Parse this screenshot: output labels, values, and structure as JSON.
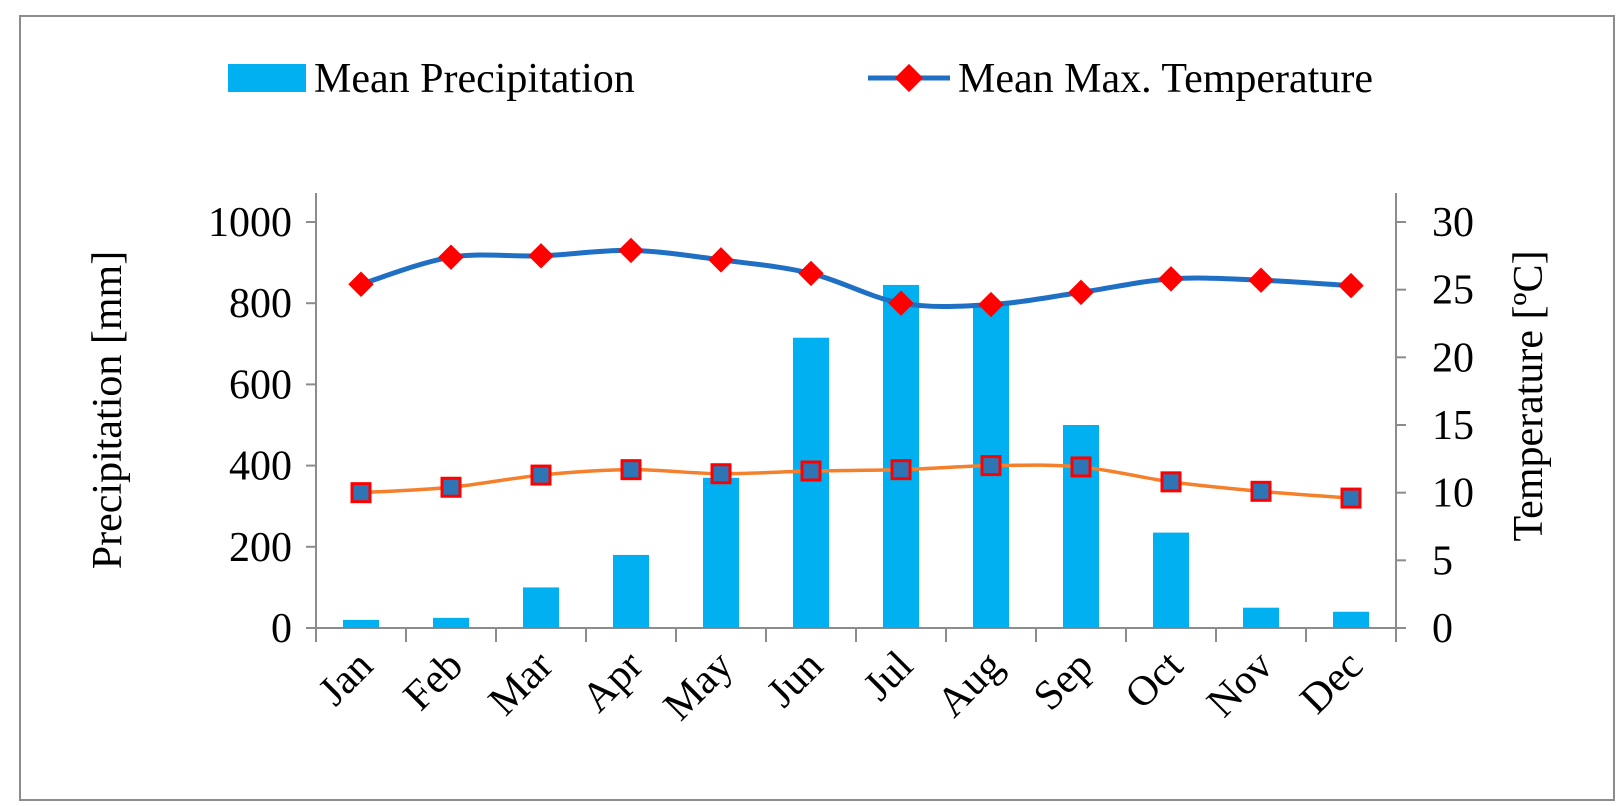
{
  "chart_data": {
    "type": "bar",
    "categories": [
      "Jan",
      "Feb",
      "Mar",
      "Apr",
      "May",
      "Jun",
      "Jul",
      "Aug",
      "Sep",
      "Oct",
      "Nov",
      "Dec"
    ],
    "series": [
      {
        "name": "Mean Precipitation",
        "type": "bar",
        "axis": "left",
        "color": "#00b0f0",
        "values": [
          20,
          25,
          100,
          180,
          370,
          715,
          845,
          795,
          500,
          235,
          50,
          40
        ]
      },
      {
        "name": "Mean Max. Temperature",
        "type": "line",
        "axis": "right",
        "color": "#1f6fc4",
        "marker_color": "#ff0000",
        "marker": "diamond",
        "values": [
          25.4,
          27.4,
          27.5,
          27.9,
          27.2,
          26.2,
          24.0,
          23.9,
          24.8,
          25.8,
          25.7,
          25.3
        ]
      },
      {
        "type": "line",
        "axis": "right",
        "color": "#f4802b",
        "marker_color": "#2e75b6",
        "marker_edge": "#ff0000",
        "marker": "square",
        "values": [
          10.0,
          10.4,
          11.3,
          11.7,
          11.4,
          11.6,
          11.7,
          12.0,
          11.9,
          10.8,
          10.1,
          9.6
        ]
      }
    ],
    "ylabel": "Precipitation [mm]",
    "y2label": "Temperature [ºC]",
    "ylim": [
      0,
      1000
    ],
    "y2lim": [
      0,
      30
    ],
    "yticks": [
      "0",
      "200",
      "400",
      "600",
      "800",
      "1000"
    ],
    "y2ticks": [
      "0",
      "5",
      "10",
      "15",
      "20",
      "25",
      "30"
    ],
    "grid": false,
    "legend_position": "top"
  }
}
